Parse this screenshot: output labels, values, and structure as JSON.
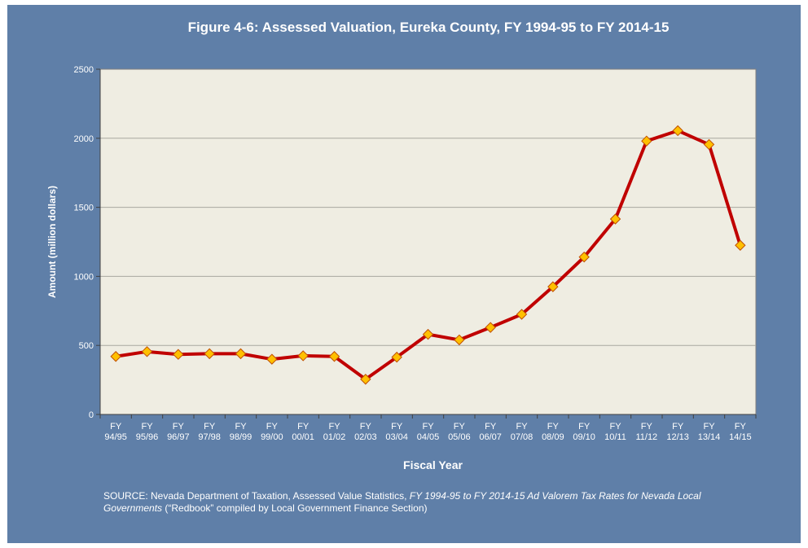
{
  "chart_data": {
    "type": "line",
    "title": "Figure 4-6: Assessed Valuation, Eureka County, FY 1994-95 to FY 2014-15",
    "xlabel": "Fiscal Year",
    "ylabel": "Amount (million dollars)",
    "ylim": [
      0,
      2500
    ],
    "yticks": [
      0,
      500,
      1000,
      1500,
      2000,
      2500
    ],
    "grid": true,
    "categories": [
      {
        "top": "FY",
        "bottom": "94/95"
      },
      {
        "top": "FY",
        "bottom": "95/96"
      },
      {
        "top": "FY",
        "bottom": "96/97"
      },
      {
        "top": "FY",
        "bottom": "97/98"
      },
      {
        "top": "FY",
        "bottom": "98/99"
      },
      {
        "top": "FY",
        "bottom": "99/00"
      },
      {
        "top": "FY",
        "bottom": "00/01"
      },
      {
        "top": "FY",
        "bottom": "01/02"
      },
      {
        "top": "FY",
        "bottom": "02/03"
      },
      {
        "top": "FY",
        "bottom": "03/04"
      },
      {
        "top": "FY",
        "bottom": "04/05"
      },
      {
        "top": "FY",
        "bottom": "05/06"
      },
      {
        "top": "FY",
        "bottom": "06/07"
      },
      {
        "top": "FY",
        "bottom": "07/08"
      },
      {
        "top": "FY",
        "bottom": "08/09"
      },
      {
        "top": "FY",
        "bottom": "09/10"
      },
      {
        "top": "FY",
        "bottom": "10/11"
      },
      {
        "top": "FY",
        "bottom": "11/12"
      },
      {
        "top": "FY",
        "bottom": "12/13"
      },
      {
        "top": "FY",
        "bottom": "13/14"
      },
      {
        "top": "FY",
        "bottom": "14/15"
      }
    ],
    "series": [
      {
        "values": [
          420,
          455,
          435,
          440,
          440,
          400,
          425,
          420,
          255,
          415,
          580,
          540,
          630,
          725,
          925,
          1140,
          1415,
          1980,
          2055,
          1955,
          1225
        ],
        "line_color": "#c00000",
        "marker_fill": "#ffc000",
        "marker_stroke": "#c05000"
      }
    ],
    "plot_background": "#efede2",
    "frame_background": "#5f7fa8"
  },
  "source": {
    "prefix": "SOURCE: Nevada Department of Taxation, Assessed Value Statistics, ",
    "italic": "FY 1994-95 to FY 2014-15  Ad Valorem Tax Rates for Nevada Local Governments",
    "suffix": " (“Redbook” compiled by Local Government Finance Section)"
  }
}
